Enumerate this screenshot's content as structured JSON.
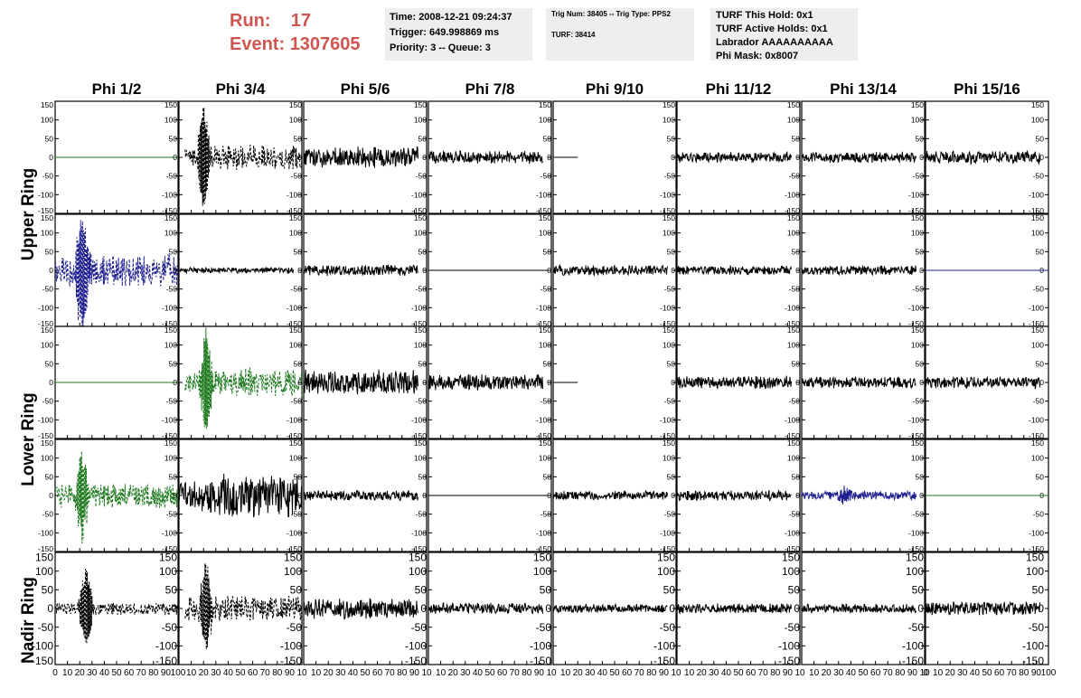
{
  "header": {
    "run_label": "Run:",
    "run_value": "17",
    "event_label": "Event:",
    "event_value": "1307605",
    "box1": [
      "Time: 2008-12-21 09:24:37",
      "Trigger: 649.998869 ms",
      "Priority: 3 -- Queue: 3"
    ],
    "box2": {
      "trig": "Trig Num: 38405 -- Trig Type: PPS2",
      "turf": "TURF: 38414"
    },
    "box3": [
      "TURF This Hold: 0x1",
      "TURF Active Holds: 0x1",
      "Labrador AAAAAAAAAA",
      "Phi Mask: 0x8007"
    ]
  },
  "chart_data": {
    "type": "line",
    "columns": [
      "Phi 1/2",
      "Phi 3/4",
      "Phi 5/6",
      "Phi 7/8",
      "Phi 9/10",
      "Phi 11/12",
      "Phi 13/14",
      "Phi 15/16"
    ],
    "ring_labels": [
      "Upper Ring",
      "Lower Ring",
      "Nadir Ring"
    ],
    "xlim": [
      0,
      100
    ],
    "ylim": [
      -150,
      150
    ],
    "xticks": [
      0,
      10,
      20,
      30,
      40,
      50,
      60,
      70,
      80,
      90,
      100
    ],
    "yticks": [
      150,
      100,
      50,
      0,
      -50,
      -100,
      -150
    ],
    "x_tick_labels": [
      "0",
      "10",
      "20",
      "30",
      "40",
      "50",
      "60",
      "70",
      "80",
      "90",
      "100"
    ],
    "x_tick_labels_inner": [
      "10",
      "20",
      "30",
      "40",
      "50",
      "60",
      "70",
      "80",
      "90",
      "10"
    ],
    "y_tick_labels": [
      "150",
      "100",
      "50",
      "0",
      "-50",
      "-100",
      "-150"
    ],
    "colors": {
      "black": "#000000",
      "blue": "#1f1f8f",
      "green": "#1f7a1f"
    },
    "panels": [
      [
        {
          "color": "green",
          "style": "flat",
          "x_end": 100,
          "amp": 0
        },
        {
          "color": "black",
          "style": "dashed",
          "x_start": 5,
          "x_end": 100,
          "amp": 35,
          "burst_x": 20,
          "burst_amp": 140,
          "burst_width": 6,
          "rise": 20
        },
        {
          "color": "black",
          "style": "solid",
          "x_end": 93,
          "amp": 30
        },
        {
          "color": "black",
          "style": "solid",
          "x_end": 93,
          "amp": 18
        },
        {
          "color": "black",
          "style": "flat",
          "x_end": 20,
          "amp": 0
        },
        {
          "color": "black",
          "style": "solid",
          "x_end": 93,
          "amp": 15
        },
        {
          "color": "black",
          "style": "solid",
          "x_end": 93,
          "amp": 15
        },
        {
          "color": "black",
          "style": "solid",
          "x_end": 93,
          "amp": 18
        }
      ],
      [
        {
          "color": "blue",
          "style": "dashed",
          "x_end": 100,
          "amp": 45,
          "burst_x": 22,
          "burst_amp": 150,
          "burst_width": 8
        },
        {
          "color": "black",
          "style": "solid",
          "x_end": 93,
          "amp": 8
        },
        {
          "color": "black",
          "style": "solid",
          "x_end": 93,
          "amp": 15
        },
        {
          "color": "black",
          "style": "flat",
          "x_end": 100,
          "amp": 0
        },
        {
          "color": "black",
          "style": "solid",
          "x_end": 93,
          "amp": 14
        },
        {
          "color": "black",
          "style": "solid",
          "x_end": 93,
          "amp": 13
        },
        {
          "color": "black",
          "style": "solid",
          "x_end": 93,
          "amp": 13
        },
        {
          "color": "blue",
          "style": "flat",
          "x_end": 100,
          "amp": 0
        }
      ],
      [
        {
          "color": "green",
          "style": "flat",
          "x_end": 100,
          "amp": 0
        },
        {
          "color": "green",
          "style": "dashed",
          "x_start": 5,
          "x_end": 100,
          "amp": 40,
          "burst_x": 22,
          "burst_amp": 130,
          "burst_width": 6,
          "rise": 25
        },
        {
          "color": "black",
          "style": "solid",
          "x_end": 93,
          "amp": 35
        },
        {
          "color": "black",
          "style": "solid",
          "x_end": 93,
          "amp": 22
        },
        {
          "color": "black",
          "style": "flat",
          "x_end": 20,
          "amp": 0
        },
        {
          "color": "black",
          "style": "solid",
          "x_end": 93,
          "amp": 18
        },
        {
          "color": "black",
          "style": "solid",
          "x_end": 93,
          "amp": 16
        },
        {
          "color": "black",
          "style": "solid",
          "x_end": 93,
          "amp": 16
        }
      ],
      [
        {
          "color": "green",
          "style": "dashed",
          "x_end": 100,
          "amp": 35,
          "burst_x": 22,
          "burst_amp": 115,
          "burst_width": 6
        },
        {
          "color": "black",
          "style": "solid",
          "x_end": 100,
          "amp": 60,
          "rise": 20
        },
        {
          "color": "black",
          "style": "solid",
          "x_end": 93,
          "amp": 14
        },
        {
          "color": "black",
          "style": "flat",
          "x_end": 100,
          "amp": 0
        },
        {
          "color": "black",
          "style": "solid",
          "x_end": 93,
          "amp": 12
        },
        {
          "color": "black",
          "style": "solid",
          "x_end": 93,
          "amp": 14
        },
        {
          "color": "blue",
          "style": "solid",
          "x_end": 93,
          "amp": 12,
          "burst_x": 35,
          "burst_amp": 20,
          "burst_width": 6
        },
        {
          "color": "green",
          "style": "flat",
          "x_end": 100,
          "amp": 0
        }
      ],
      [
        {
          "color": "black",
          "style": "dashed",
          "x_end": 100,
          "amp": 18,
          "burst_x": 25,
          "burst_amp": 100,
          "burst_width": 7
        },
        {
          "color": "black",
          "style": "dashed",
          "x_start": 5,
          "x_end": 100,
          "amp": 35,
          "burst_x": 22,
          "burst_amp": 120,
          "burst_width": 6
        },
        {
          "color": "black",
          "style": "solid",
          "x_end": 93,
          "amp": 28
        },
        {
          "color": "black",
          "style": "solid",
          "x_end": 93,
          "amp": 15
        },
        {
          "color": "black",
          "style": "solid",
          "x_end": 93,
          "amp": 12
        },
        {
          "color": "black",
          "style": "solid",
          "x_end": 93,
          "amp": 14
        },
        {
          "color": "black",
          "style": "solid",
          "x_end": 93,
          "amp": 12
        },
        {
          "color": "black",
          "style": "solid",
          "x_end": 93,
          "amp": 18
        }
      ]
    ]
  }
}
